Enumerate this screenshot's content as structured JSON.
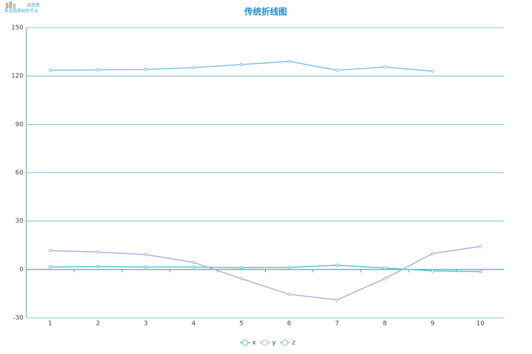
{
  "logo": {
    "name": "图表秀",
    "tagline": "专业图表制作平台"
  },
  "chart_data": {
    "type": "line",
    "title": "传统折线图",
    "categories": [
      "1",
      "2",
      "3",
      "4",
      "5",
      "6",
      "7",
      "8",
      "9",
      "10"
    ],
    "series": [
      {
        "name": "x",
        "color": "#4fc9c0",
        "values": [
          1.5,
          1.8,
          1.5,
          1.5,
          1.1,
          1.3,
          2.6,
          0.9,
          -0.9,
          -1.3
        ]
      },
      {
        "name": "y",
        "color": "#b9a8e0",
        "values": [
          11.7,
          10.8,
          9.2,
          4.4,
          -5.7,
          -15.4,
          -18.9,
          -5.7,
          9.9,
          14.3
        ]
      },
      {
        "name": "z",
        "color": "#7fc0e6",
        "values": [
          123.6,
          123.8,
          124.1,
          125.2,
          127.1,
          129.1,
          123.6,
          125.6,
          123.0,
          null
        ]
      }
    ],
    "ylim": [
      -30,
      150
    ],
    "yticks": [
      -30,
      0,
      30,
      60,
      90,
      120,
      150
    ],
    "grid": true,
    "legend": "bottom"
  }
}
